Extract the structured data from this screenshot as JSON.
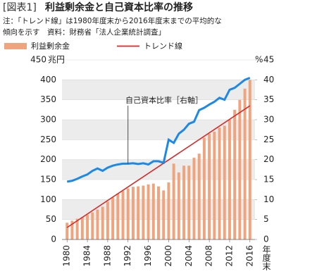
{
  "chart_data": {
    "type": "bar",
    "title_prefix": "[図表1]",
    "title": "利益剰余金と自己資本比率の推移",
    "note": [
      "注：「トレンド線」は1980年度末から2016年度末までの平均的な",
      "傾向を示す　資料：財務省「法人企業統計調査」"
    ],
    "annotation": "自己資本比率［右軸］",
    "x_label": "年度末",
    "y_unit": "兆円",
    "y2_unit": "%",
    "x": [
      1980,
      1981,
      1982,
      1983,
      1984,
      1985,
      1986,
      1987,
      1988,
      1989,
      1990,
      1991,
      1992,
      1993,
      1994,
      1995,
      1996,
      1997,
      1998,
      1999,
      2000,
      2001,
      2002,
      2003,
      2004,
      2005,
      2006,
      2007,
      2008,
      2009,
      2010,
      2011,
      2012,
      2013,
      2014,
      2015,
      2016
    ],
    "xlim": [
      1979,
      2017
    ],
    "xticks": [
      1980,
      1984,
      1988,
      1992,
      1996,
      2000,
      2004,
      2008,
      2012,
      2016
    ],
    "ylim": [
      0,
      450
    ],
    "yticks": [
      0,
      50,
      100,
      150,
      200,
      250,
      300,
      350,
      400,
      450
    ],
    "y2lim": [
      0,
      45
    ],
    "y2ticks": [
      0,
      5,
      10,
      15,
      20,
      25,
      30,
      35,
      40,
      45
    ],
    "bands": true,
    "series": [
      {
        "name": "利益剰余金",
        "type": "bar",
        "color": "#f0a47e",
        "values": [
          42,
          47,
          52,
          56,
          62,
          68,
          75,
          82,
          95,
          105,
          115,
          122,
          128,
          132,
          133,
          135,
          138,
          140,
          133,
          123,
          143,
          190,
          168,
          185,
          185,
          205,
          215,
          255,
          265,
          270,
          280,
          285,
          300,
          325,
          350,
          378,
          400
        ]
      },
      {
        "name": "トレンド線",
        "type": "line",
        "color": "#d42a2a",
        "x": [
          1980,
          2016
        ],
        "values": [
          30,
          335
        ]
      },
      {
        "type": "line",
        "axis": "y2",
        "color": "#1e88e5",
        "values": [
          14.5,
          14.7,
          15.2,
          15.8,
          16.3,
          17.2,
          17.8,
          17.2,
          18.0,
          18.5,
          18.8,
          19.0,
          19.0,
          19.1,
          18.9,
          19.1,
          18.8,
          19.6,
          19.6,
          19.2,
          25.0,
          24.2,
          26.5,
          27.5,
          29.0,
          29.5,
          32.4,
          33.0,
          33.8,
          34.5,
          35.5,
          35.0,
          37.5,
          38.0,
          39.0,
          40.0,
          40.5
        ]
      }
    ]
  }
}
